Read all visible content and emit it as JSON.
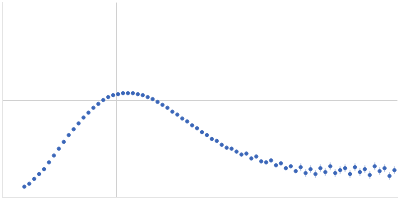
{
  "chart_data": {
    "type": "scatter",
    "x": [
      0.22,
      0.27,
      0.32,
      0.37,
      0.42,
      0.47,
      0.52,
      0.57,
      0.62,
      0.67,
      0.72,
      0.77,
      0.82,
      0.87,
      0.92,
      0.97,
      1.02,
      1.07,
      1.12,
      1.17,
      1.22,
      1.27,
      1.32,
      1.37,
      1.42,
      1.47,
      1.52,
      1.57,
      1.62,
      1.67,
      1.72,
      1.77,
      1.82,
      1.87,
      1.92,
      1.97,
      2.02,
      2.07,
      2.12,
      2.17,
      2.22,
      2.27,
      2.32,
      2.37,
      2.42,
      2.47,
      2.52,
      2.57,
      2.62,
      2.67,
      2.72,
      2.77,
      2.82,
      2.87,
      2.92,
      2.97,
      3.02,
      3.07,
      3.12,
      3.17,
      3.22,
      3.27,
      3.32,
      3.37,
      3.42,
      3.47,
      3.52,
      3.57,
      3.62,
      3.67,
      3.72,
      3.77,
      3.82,
      3.87,
      3.92,
      3.97
    ],
    "values": [
      0.11,
      0.14,
      0.19,
      0.24,
      0.29,
      0.36,
      0.43,
      0.5,
      0.57,
      0.64,
      0.7,
      0.76,
      0.82,
      0.87,
      0.92,
      0.96,
      1.0,
      1.03,
      1.05,
      1.06,
      1.07,
      1.07,
      1.07,
      1.06,
      1.05,
      1.03,
      1.01,
      0.98,
      0.95,
      0.92,
      0.88,
      0.85,
      0.81,
      0.78,
      0.74,
      0.71,
      0.67,
      0.64,
      0.6,
      0.58,
      0.54,
      0.51,
      0.5,
      0.47,
      0.44,
      0.45,
      0.4,
      0.42,
      0.37,
      0.36,
      0.38,
      0.33,
      0.35,
      0.3,
      0.32,
      0.27,
      0.31,
      0.25,
      0.29,
      0.24,
      0.3,
      0.26,
      0.32,
      0.25,
      0.28,
      0.3,
      0.24,
      0.31,
      0.26,
      0.29,
      0.23,
      0.32,
      0.27,
      0.3,
      0.22,
      0.28
    ],
    "errors": [
      0.01,
      0.01,
      0.01,
      0.01,
      0.01,
      0.01,
      0.01,
      0.01,
      0.01,
      0.01,
      0.01,
      0.01,
      0.01,
      0.01,
      0.01,
      0.01,
      0.01,
      0.01,
      0.01,
      0.01,
      0.01,
      0.01,
      0.01,
      0.01,
      0.01,
      0.01,
      0.01,
      0.01,
      0.01,
      0.01,
      0.01,
      0.01,
      0.01,
      0.01,
      0.01,
      0.01,
      0.01,
      0.01,
      0.01,
      0.01,
      0.02,
      0.02,
      0.02,
      0.02,
      0.02,
      0.02,
      0.02,
      0.02,
      0.02,
      0.02,
      0.02,
      0.02,
      0.02,
      0.02,
      0.02,
      0.02,
      0.04,
      0.04,
      0.04,
      0.04,
      0.04,
      0.04,
      0.04,
      0.04,
      0.04,
      0.04,
      0.04,
      0.04,
      0.04,
      0.04,
      0.04,
      0.04,
      0.04,
      0.04,
      0.04,
      0.04
    ],
    "color": "#3a66b8",
    "marker": "circle",
    "xlim": [
      0,
      4
    ],
    "xticks": [
      1.15
    ],
    "ylim": [
      0,
      2
    ],
    "yticks": [
      1
    ],
    "grid": true,
    "tick_labels": false
  }
}
